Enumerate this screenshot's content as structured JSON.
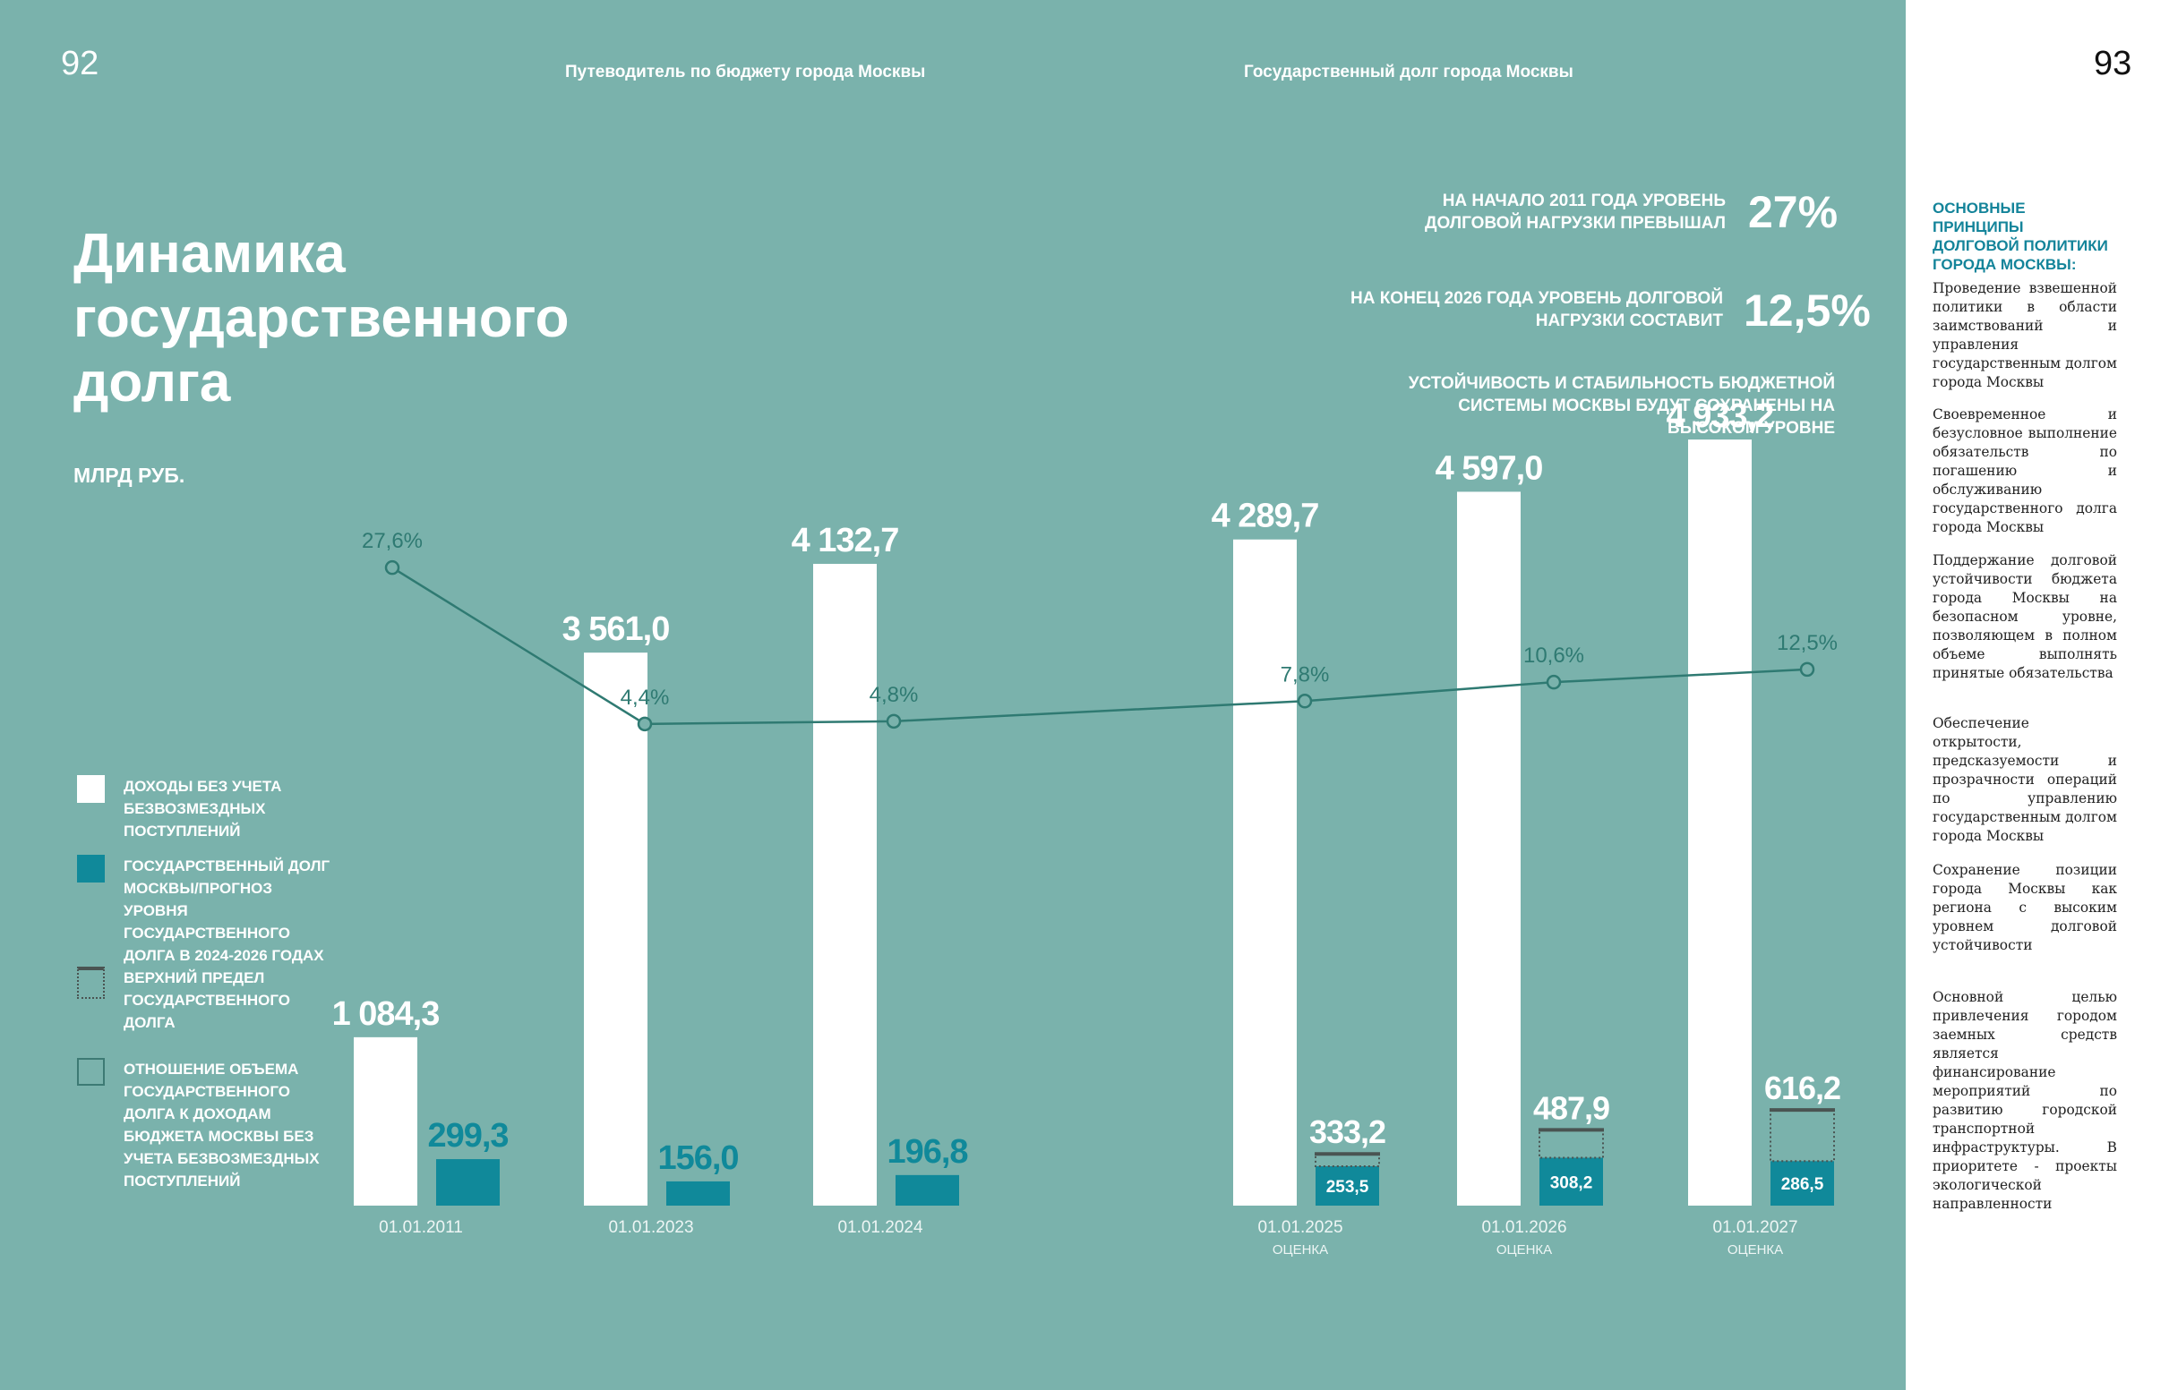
{
  "header": {
    "page_left": "92",
    "page_right": "93",
    "left_title": "Путеводитель по бюджету города Москвы",
    "right_title": "Государственный долг города Москвы"
  },
  "title": "Динамика государственного долга",
  "unit_label": "МЛРД РУБ.",
  "statements": [
    {
      "text": "НА НАЧАЛО 2011 ГОДА УРОВЕНЬ ДОЛГОВОЙ НАГРУЗКИ ПРЕВЫШАЛ",
      "value": "27%"
    },
    {
      "text": "НА КОНЕЦ 2026 ГОДА УРОВЕНЬ ДОЛГОВОЙ НАГРУЗКИ СОСТАВИТ",
      "value": "12,5%"
    },
    {
      "text": "УСТОЙЧИВОСТЬ И СТАБИЛЬНОСТЬ БЮДЖЕТНОЙ СИСТЕМЫ МОСКВЫ БУДУТ СОХРАНЕНЫ НА ВЫСОКОМ УРОВНЕ"
    }
  ],
  "legend": [
    {
      "label": "Доходы без учета безвозмездных поступлений",
      "icon": "white-square"
    },
    {
      "label": "Государственный долг Москвы/прогноз уровня государственного долга в 2024-2026 годах",
      "icon": "teal-square"
    },
    {
      "label": "Верхний предел государственного долга",
      "icon": "dotted-box-with-bar"
    },
    {
      "label": "Отношение объема государственного долга к доходам бюджета Москвы без учета безвозмездных поступлений",
      "icon": "outline-square"
    }
  ],
  "colors": {
    "background": "#7ab2ac",
    "revenue": "#ffffff",
    "debt": "#10899a",
    "line": "#2f7a72",
    "limit": "#4a5452"
  },
  "chart_data": {
    "type": "bar",
    "categories": [
      "01.01.2011",
      "01.01.2023",
      "01.01.2024",
      "01.01.2025",
      "01.01.2026",
      "01.01.2027"
    ],
    "category_notes": [
      "",
      "",
      "",
      "ОЦЕНКА",
      "ОЦЕНКА",
      "ОЦЕНКА"
    ],
    "series": [
      {
        "name": "Доходы без учета безвозмездных поступлений",
        "values": [
          1084.3,
          3561.0,
          4132.7,
          4289.7,
          4597.0,
          4933.2
        ],
        "labels": [
          "1 084,3",
          "3 561,0",
          "4 132,7",
          "4 289,7",
          "4 597,0",
          "4 933,2"
        ]
      },
      {
        "name": "Государственный долг Москвы/прогноз уровня государственного долга в 2024-2026 годах",
        "values": [
          299.3,
          156.0,
          196.8,
          253.5,
          308.2,
          286.5
        ],
        "labels": [
          "299,3",
          "156,0",
          "196,8",
          "253,5",
          "308,2",
          "286,5"
        ]
      },
      {
        "name": "Верхний предел государственного долга",
        "values": [
          null,
          null,
          null,
          333.2,
          487.9,
          616.2
        ],
        "labels": [
          "",
          "",
          "",
          "333,2",
          "487,9",
          "616,2"
        ]
      },
      {
        "name": "Отношение объема государственного долга к доходам бюджета Москвы без учета безвозмездных поступлений",
        "type": "line",
        "unit": "%",
        "values": [
          27.6,
          4.4,
          4.8,
          7.8,
          10.6,
          12.5
        ],
        "labels": [
          "27,6%",
          "4,4%",
          "4,8%",
          "7,8%",
          "10,6%",
          "12,5%"
        ]
      }
    ],
    "ylabel": "МЛРД РУБ.",
    "grid": false,
    "legend_position": "left"
  },
  "sidebar": {
    "heading": "Основные принципы долговой политики города Москвы:",
    "paragraphs": [
      "Проведение взвешенной политики в области заимствований и управления государственным долгом города Москвы",
      "Своевременное и безусловное выполнение обязательств по погашению и обслуживанию государственного долга города Москвы",
      "Поддержание долговой устойчивости бюджета города Москвы на безопасном уровне, позволяющем в полном объеме выполнять принятые обязательства",
      "Обеспечение открытости, предсказуемости и прозрачности операций по управлению государственным долгом города Москвы",
      "Сохранение позиции города Москвы как региона с высоким уровнем долговой устойчивости",
      "Основной целью привлечения городом заемных средств является финансирование мероприятий по развитию городской транспортной инфраструктуры. В приоритете - проекты экологической направленности"
    ]
  }
}
